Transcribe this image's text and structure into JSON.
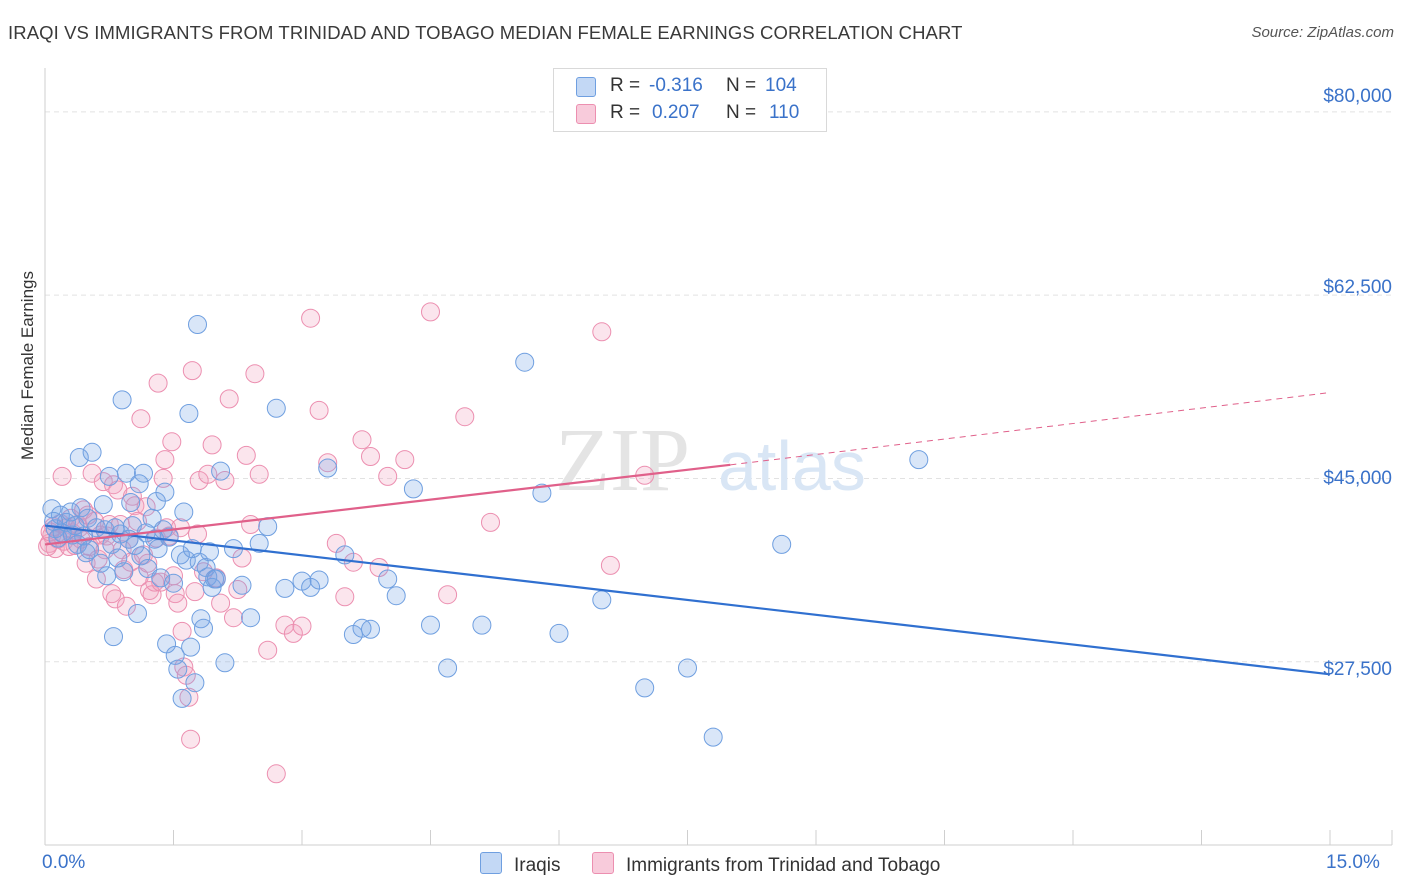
{
  "title": "IRAQI VS IMMIGRANTS FROM TRINIDAD AND TOBAGO MEDIAN FEMALE EARNINGS CORRELATION CHART",
  "source": "Source: ZipAtlas.com",
  "colors": {
    "blue": "#6f9fe0",
    "blue_line": "#3070d0",
    "pink": "#ec8fb0",
    "pink_line": "#e0608a",
    "axis_text": "#3a72c9"
  },
  "legend_top": {
    "rows": [
      {
        "r_label": "R =",
        "r_value": "-0.316",
        "n_label": "N =",
        "n_value": "104"
      },
      {
        "r_label": "R =",
        "r_value": "0.207",
        "n_label": "N =",
        "n_value": "110"
      }
    ]
  },
  "legend_bottom": {
    "series": [
      "Iraqis",
      "Immigrants from Trinidad and Tobago"
    ]
  },
  "watermark": {
    "zip": "ZIP",
    "atlas": "atlas"
  },
  "chart_data": {
    "type": "scatter",
    "title": "IRAQI VS IMMIGRANTS FROM TRINIDAD AND TOBAGO MEDIAN FEMALE EARNINGS CORRELATION CHART",
    "xlabel": "",
    "ylabel": "Median Female Earnings",
    "xlim": [
      0,
      15
    ],
    "ylim": [
      10000,
      84000
    ],
    "x_tick_labels": [
      "0.0%",
      "15.0%"
    ],
    "y_ticks": [
      27500,
      45000,
      62500,
      80000
    ],
    "y_tick_labels": [
      "$27,500",
      "$45,000",
      "$62,500",
      "$80,000"
    ],
    "series": [
      {
        "name": "Iraqis",
        "R": -0.316,
        "N": 104,
        "trend": {
          "x": [
            0,
            15
          ],
          "y": [
            40500,
            26300
          ]
        },
        "points": [
          [
            0.08,
            42100
          ],
          [
            0.12,
            40200
          ],
          [
            0.15,
            39300
          ],
          [
            0.18,
            41500
          ],
          [
            0.2,
            39800
          ],
          [
            0.25,
            40800
          ],
          [
            0.3,
            41800
          ],
          [
            0.32,
            39600
          ],
          [
            0.35,
            40500
          ],
          [
            0.38,
            38700
          ],
          [
            0.4,
            47000
          ],
          [
            0.42,
            42200
          ],
          [
            0.45,
            39500
          ],
          [
            0.48,
            37900
          ],
          [
            0.5,
            41200
          ],
          [
            0.52,
            38200
          ],
          [
            0.55,
            47500
          ],
          [
            0.6,
            40300
          ],
          [
            0.65,
            36900
          ],
          [
            0.68,
            42500
          ],
          [
            0.7,
            40100
          ],
          [
            0.72,
            35700
          ],
          [
            0.75,
            45200
          ],
          [
            0.78,
            38700
          ],
          [
            0.8,
            29900
          ],
          [
            0.82,
            40300
          ],
          [
            0.85,
            37400
          ],
          [
            0.88,
            39700
          ],
          [
            0.9,
            52500
          ],
          [
            0.92,
            36100
          ],
          [
            0.95,
            45500
          ],
          [
            0.98,
            39200
          ],
          [
            1.0,
            42700
          ],
          [
            1.02,
            40500
          ],
          [
            1.05,
            38600
          ],
          [
            1.08,
            32100
          ],
          [
            1.1,
            44500
          ],
          [
            1.12,
            37600
          ],
          [
            1.15,
            45500
          ],
          [
            1.18,
            39800
          ],
          [
            1.2,
            36400
          ],
          [
            1.25,
            41200
          ],
          [
            1.28,
            39200
          ],
          [
            1.3,
            42800
          ],
          [
            1.32,
            38300
          ],
          [
            1.35,
            35500
          ],
          [
            1.38,
            40100
          ],
          [
            1.4,
            43700
          ],
          [
            1.42,
            29200
          ],
          [
            1.45,
            39400
          ],
          [
            1.5,
            35000
          ],
          [
            1.52,
            28100
          ],
          [
            1.55,
            26800
          ],
          [
            1.58,
            37700
          ],
          [
            1.6,
            24000
          ],
          [
            1.62,
            41800
          ],
          [
            1.65,
            37200
          ],
          [
            1.68,
            51200
          ],
          [
            1.7,
            28900
          ],
          [
            1.72,
            38300
          ],
          [
            1.75,
            25500
          ],
          [
            1.78,
            59700
          ],
          [
            1.8,
            37000
          ],
          [
            1.82,
            31600
          ],
          [
            1.85,
            30700
          ],
          [
            1.88,
            36500
          ],
          [
            1.9,
            35600
          ],
          [
            1.92,
            38000
          ],
          [
            1.95,
            34600
          ],
          [
            1.98,
            35400
          ],
          [
            2.0,
            35400
          ],
          [
            2.05,
            45700
          ],
          [
            2.1,
            27400
          ],
          [
            2.2,
            38300
          ],
          [
            2.3,
            34800
          ],
          [
            2.4,
            31700
          ],
          [
            2.5,
            38800
          ],
          [
            2.6,
            40400
          ],
          [
            2.7,
            51700
          ],
          [
            2.8,
            34500
          ],
          [
            3.0,
            35200
          ],
          [
            3.1,
            34600
          ],
          [
            3.2,
            35300
          ],
          [
            3.3,
            46000
          ],
          [
            3.5,
            37700
          ],
          [
            3.6,
            30100
          ],
          [
            3.7,
            30700
          ],
          [
            3.8,
            30600
          ],
          [
            4.0,
            35400
          ],
          [
            4.1,
            33800
          ],
          [
            4.3,
            44000
          ],
          [
            4.5,
            31000
          ],
          [
            4.7,
            26900
          ],
          [
            5.1,
            31000
          ],
          [
            5.6,
            56100
          ],
          [
            5.8,
            43600
          ],
          [
            6.0,
            30200
          ],
          [
            6.5,
            33400
          ],
          [
            7.0,
            25000
          ],
          [
            7.5,
            26900
          ],
          [
            7.8,
            20300
          ],
          [
            8.6,
            38700
          ],
          [
            10.2,
            46800
          ],
          [
            0.1,
            40900
          ]
        ]
      },
      {
        "name": "Immigrants from Trinidad and Tobago",
        "R": 0.207,
        "N": 110,
        "trend": {
          "x": [
            0,
            8
          ],
          "y": [
            38700,
            46300
          ]
        },
        "trend_dashed": {
          "x": [
            8,
            15
          ],
          "y": [
            46300,
            53200
          ]
        },
        "points": [
          [
            0.05,
            38800
          ],
          [
            0.08,
            39600
          ],
          [
            0.1,
            40400
          ],
          [
            0.12,
            38300
          ],
          [
            0.15,
            39200
          ],
          [
            0.18,
            40700
          ],
          [
            0.2,
            45200
          ],
          [
            0.22,
            39000
          ],
          [
            0.25,
            40300
          ],
          [
            0.28,
            38500
          ],
          [
            0.3,
            41200
          ],
          [
            0.32,
            39800
          ],
          [
            0.35,
            38600
          ],
          [
            0.38,
            40600
          ],
          [
            0.4,
            40300
          ],
          [
            0.42,
            39200
          ],
          [
            0.45,
            42000
          ],
          [
            0.48,
            36900
          ],
          [
            0.5,
            41500
          ],
          [
            0.52,
            38500
          ],
          [
            0.55,
            45500
          ],
          [
            0.58,
            40900
          ],
          [
            0.6,
            35400
          ],
          [
            0.62,
            37300
          ],
          [
            0.65,
            39600
          ],
          [
            0.68,
            44700
          ],
          [
            0.7,
            38200
          ],
          [
            0.72,
            39500
          ],
          [
            0.75,
            40600
          ],
          [
            0.78,
            34000
          ],
          [
            0.8,
            44400
          ],
          [
            0.82,
            33500
          ],
          [
            0.85,
            43900
          ],
          [
            0.88,
            40600
          ],
          [
            0.9,
            38200
          ],
          [
            0.92,
            36300
          ],
          [
            0.95,
            32800
          ],
          [
            0.98,
            39200
          ],
          [
            1.0,
            37000
          ],
          [
            1.02,
            43300
          ],
          [
            1.05,
            42400
          ],
          [
            1.08,
            40900
          ],
          [
            1.1,
            35600
          ],
          [
            1.12,
            50700
          ],
          [
            1.15,
            37700
          ],
          [
            1.18,
            42300
          ],
          [
            1.2,
            36900
          ],
          [
            1.22,
            34300
          ],
          [
            1.25,
            33900
          ],
          [
            1.28,
            35100
          ],
          [
            1.3,
            39300
          ],
          [
            1.32,
            54100
          ],
          [
            1.35,
            35100
          ],
          [
            1.38,
            45000
          ],
          [
            1.4,
            46800
          ],
          [
            1.42,
            40300
          ],
          [
            1.45,
            39500
          ],
          [
            1.48,
            48500
          ],
          [
            1.5,
            35700
          ],
          [
            1.52,
            34000
          ],
          [
            1.55,
            33100
          ],
          [
            1.58,
            40300
          ],
          [
            1.6,
            30400
          ],
          [
            1.62,
            27000
          ],
          [
            1.65,
            26200
          ],
          [
            1.68,
            24100
          ],
          [
            1.7,
            20100
          ],
          [
            1.72,
            55300
          ],
          [
            1.75,
            34200
          ],
          [
            1.78,
            39700
          ],
          [
            1.8,
            44800
          ],
          [
            1.85,
            36100
          ],
          [
            1.9,
            45400
          ],
          [
            1.95,
            48200
          ],
          [
            2.0,
            35500
          ],
          [
            2.05,
            33100
          ],
          [
            2.1,
            44800
          ],
          [
            2.15,
            52600
          ],
          [
            2.2,
            31700
          ],
          [
            2.25,
            34400
          ],
          [
            2.3,
            37400
          ],
          [
            2.35,
            47200
          ],
          [
            2.4,
            40600
          ],
          [
            2.45,
            55000
          ],
          [
            2.5,
            45400
          ],
          [
            2.6,
            28600
          ],
          [
            2.7,
            16800
          ],
          [
            2.8,
            31000
          ],
          [
            2.9,
            30200
          ],
          [
            3.0,
            30900
          ],
          [
            3.1,
            60300
          ],
          [
            3.2,
            51500
          ],
          [
            3.3,
            46500
          ],
          [
            3.4,
            38800
          ],
          [
            3.5,
            33700
          ],
          [
            3.6,
            37000
          ],
          [
            3.7,
            48700
          ],
          [
            3.8,
            47100
          ],
          [
            3.9,
            36500
          ],
          [
            4.0,
            45200
          ],
          [
            4.2,
            46800
          ],
          [
            4.5,
            60900
          ],
          [
            4.7,
            33900
          ],
          [
            4.9,
            50900
          ],
          [
            5.2,
            40800
          ],
          [
            6.5,
            59000
          ],
          [
            6.6,
            36700
          ],
          [
            7.0,
            45300
          ],
          [
            0.03,
            38500
          ],
          [
            0.06,
            39900
          ]
        ]
      }
    ]
  }
}
